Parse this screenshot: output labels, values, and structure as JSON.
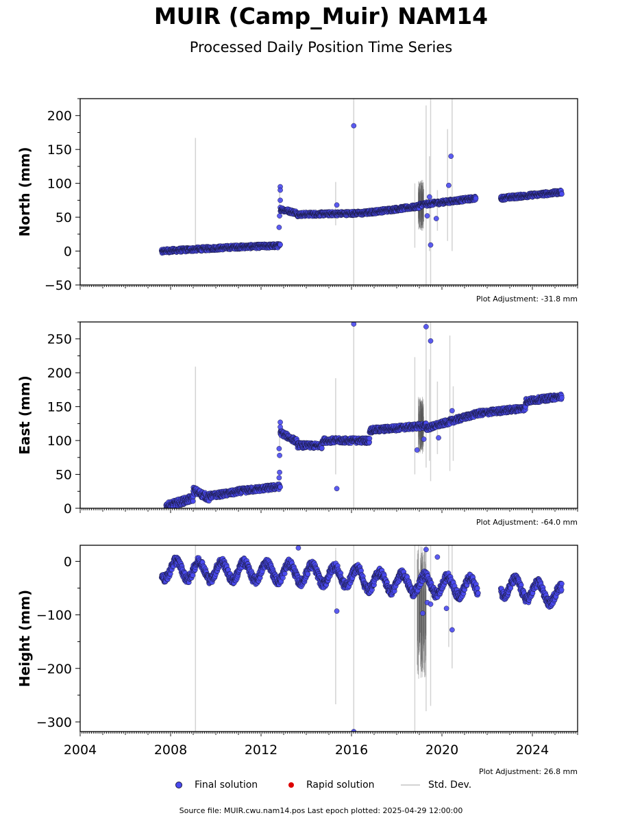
{
  "title": "MUIR (Camp_Muir) NAM14",
  "subtitle": "Processed Daily Position Time Series",
  "source_text": "Source file: MUIR.cwu.nam14.pos  Last epoch plotted: 2025-04-29 12:00:00",
  "colors": {
    "final": "#4a4af0",
    "final_edge": "#1a1a40",
    "rapid": "#dd0000",
    "stddev": "#d3d3d3",
    "stddev_dense": "#555555"
  },
  "legend": [
    {
      "label": "Final solution",
      "marker": "dot",
      "color": "#4a4af0"
    },
    {
      "label": "Rapid solution",
      "marker": "dot",
      "color": "#dd0000"
    },
    {
      "label": "Std. Dev.",
      "marker": "line",
      "color": "#d3d3d3"
    }
  ],
  "chart_data": [
    {
      "type": "scatter",
      "ylabel": "North (mm)",
      "adjustment": "Plot Adjustment: -31.8 mm",
      "xlim": [
        2004,
        2026
      ],
      "ylim": [
        -50,
        225
      ],
      "yticks": [
        -50,
        0,
        50,
        100,
        150,
        200
      ],
      "ytick_labels": [
        "−50",
        "0",
        "50",
        "100",
        "150",
        "200"
      ],
      "segments": [
        {
          "x0": 2007.6,
          "x1": 2010.95,
          "y0": 0,
          "y1": 6,
          "amp": 3
        },
        {
          "x0": 2010.95,
          "x1": 2012.85,
          "y0": 6,
          "y1": 8,
          "amp": 3
        },
        {
          "x0": 2012.85,
          "x1": 2013.6,
          "y0": 62,
          "y1": 56,
          "amp": 3
        },
        {
          "x0": 2013.6,
          "x1": 2016.5,
          "y0": 54,
          "y1": 56,
          "amp": 3
        },
        {
          "x0": 2016.5,
          "x1": 2019.0,
          "y0": 56,
          "y1": 66,
          "amp": 3
        },
        {
          "x0": 2019.0,
          "x1": 2021.5,
          "y0": 68,
          "y1": 78,
          "amp": 3
        },
        {
          "x0": 2022.6,
          "x1": 2025.3,
          "y0": 78,
          "y1": 87,
          "amp": 3
        }
      ],
      "outliers": [
        [
          2012.85,
          95
        ],
        [
          2012.85,
          90
        ],
        [
          2012.85,
          75
        ],
        [
          2012.82,
          52
        ],
        [
          2012.8,
          35
        ],
        [
          2015.35,
          68
        ],
        [
          2016.1,
          185
        ],
        [
          2019.35,
          52
        ],
        [
          2019.45,
          80
        ],
        [
          2019.5,
          9
        ],
        [
          2019.75,
          48
        ],
        [
          2020.3,
          97
        ],
        [
          2020.4,
          140
        ]
      ],
      "stddev": [
        [
          2009.1,
          0,
          167
        ],
        [
          2012.82,
          60,
          95
        ],
        [
          2015.3,
          38,
          102
        ],
        [
          2016.1,
          -50,
          225
        ],
        [
          2018.8,
          5,
          100
        ],
        [
          2019.3,
          -50,
          215
        ],
        [
          2019.5,
          -50,
          225
        ],
        [
          2019.45,
          0,
          140
        ],
        [
          2019.8,
          30,
          90
        ],
        [
          2020.25,
          15,
          180
        ],
        [
          2020.45,
          0,
          225
        ]
      ],
      "stddev_dense": {
        "x0": 2018.95,
        "x1": 2019.2,
        "y0": 30,
        "y1": 105
      }
    },
    {
      "type": "scatter",
      "ylabel": "East (mm)",
      "adjustment": "Plot Adjustment: -64.0 mm",
      "xlim": [
        2004,
        2026
      ],
      "ylim": [
        0,
        275
      ],
      "yticks": [
        0,
        50,
        100,
        150,
        200,
        250
      ],
      "ytick_labels": [
        "0",
        "50",
        "100",
        "150",
        "200",
        "250"
      ],
      "segments": [
        {
          "x0": 2007.8,
          "x1": 2009.0,
          "y0": 3,
          "y1": 15,
          "amp": 5
        },
        {
          "x0": 2009.0,
          "x1": 2009.7,
          "y0": 27,
          "y1": 15,
          "amp": 5
        },
        {
          "x0": 2009.7,
          "x1": 2010.95,
          "y0": 18,
          "y1": 24,
          "amp": 4
        },
        {
          "x0": 2010.95,
          "x1": 2012.85,
          "y0": 25,
          "y1": 32,
          "amp": 4
        },
        {
          "x0": 2012.85,
          "x1": 2013.6,
          "y0": 112,
          "y1": 98,
          "amp": 4
        },
        {
          "x0": 2013.6,
          "x1": 2014.7,
          "y0": 93,
          "y1": 92,
          "amp": 4
        },
        {
          "x0": 2014.7,
          "x1": 2016.8,
          "y0": 100,
          "y1": 100,
          "amp": 4
        },
        {
          "x0": 2016.8,
          "x1": 2019.3,
          "y0": 115,
          "y1": 122,
          "amp": 4
        },
        {
          "x0": 2019.3,
          "x1": 2021.6,
          "y0": 118,
          "y1": 140,
          "amp": 4
        },
        {
          "x0": 2021.6,
          "x1": 2023.7,
          "y0": 140,
          "y1": 148,
          "amp": 4
        },
        {
          "x0": 2023.7,
          "x1": 2025.3,
          "y0": 158,
          "y1": 165,
          "amp": 4
        }
      ],
      "outliers": [
        [
          2012.85,
          127
        ],
        [
          2012.85,
          120
        ],
        [
          2012.82,
          78
        ],
        [
          2012.8,
          88
        ],
        [
          2012.82,
          53
        ],
        [
          2012.8,
          45
        ],
        [
          2015.35,
          29
        ],
        [
          2016.1,
          272
        ],
        [
          2018.9,
          86
        ],
        [
          2019.2,
          102
        ],
        [
          2019.3,
          268
        ],
        [
          2019.5,
          247
        ],
        [
          2019.85,
          104
        ],
        [
          2020.45,
          144
        ]
      ],
      "stddev": [
        [
          2009.1,
          0,
          209
        ],
        [
          2012.82,
          85,
          120
        ],
        [
          2015.3,
          50,
          192
        ],
        [
          2016.1,
          0,
          275
        ],
        [
          2018.8,
          50,
          223
        ],
        [
          2019.3,
          60,
          275
        ],
        [
          2019.5,
          40,
          275
        ],
        [
          2019.45,
          70,
          205
        ],
        [
          2019.8,
          80,
          187
        ],
        [
          2020.35,
          55,
          255
        ],
        [
          2020.5,
          70,
          180
        ]
      ],
      "stddev_dense": {
        "x0": 2018.95,
        "x1": 2019.2,
        "y0": 80,
        "y1": 165
      }
    },
    {
      "type": "scatter",
      "ylabel": "Height (mm)",
      "adjustment": "Plot Adjustment: 26.8 mm",
      "xlim": [
        2004,
        2026
      ],
      "ylim": [
        -318,
        30
      ],
      "yticks": [
        -300,
        -200,
        -100,
        0
      ],
      "ytick_labels": [
        "−300",
        "−200",
        "−100",
        "0"
      ],
      "xticks": [
        2004,
        2008,
        2012,
        2016,
        2020,
        2024
      ],
      "xtick_labels": [
        "2004",
        "2008",
        "2012",
        "2016",
        "2020",
        "2024"
      ],
      "segments": [
        {
          "x0": 2007.6,
          "x1": 2012.85,
          "y0": -15,
          "y1": -20,
          "amp": 17,
          "period": 1
        },
        {
          "x0": 2012.85,
          "x1": 2016.5,
          "y0": -20,
          "y1": -30,
          "amp": 17,
          "period": 1
        },
        {
          "x0": 2016.5,
          "x1": 2021.6,
          "y0": -35,
          "y1": -50,
          "amp": 17,
          "period": 1
        },
        {
          "x0": 2022.6,
          "x1": 2025.3,
          "y0": -45,
          "y1": -65,
          "amp": 17,
          "period": 1
        }
      ],
      "outliers": [
        [
          2013.65,
          25
        ],
        [
          2015.35,
          -93
        ],
        [
          2016.1,
          -318
        ],
        [
          2019.15,
          -97
        ],
        [
          2019.3,
          22
        ],
        [
          2019.35,
          -77
        ],
        [
          2019.5,
          -80
        ],
        [
          2019.8,
          8
        ],
        [
          2020.2,
          -88
        ],
        [
          2020.45,
          -128
        ]
      ],
      "stddev": [
        [
          2009.1,
          -318,
          30
        ],
        [
          2015.3,
          -267,
          25
        ],
        [
          2016.1,
          -318,
          30
        ],
        [
          2018.8,
          -320,
          30
        ],
        [
          2019.3,
          -280,
          30
        ],
        [
          2019.5,
          -270,
          30
        ],
        [
          2020.3,
          -160,
          30
        ],
        [
          2020.45,
          -200,
          30
        ]
      ],
      "stddev_dense": {
        "x0": 2018.9,
        "x1": 2019.3,
        "y0": -220,
        "y1": 30
      }
    }
  ]
}
